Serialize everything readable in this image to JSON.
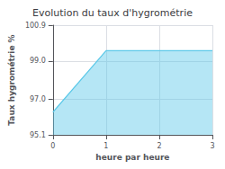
{
  "chart_data": {
    "type": "line",
    "title": "Evolution du taux d'hygrométrie",
    "xlabel": "heure par heure",
    "ylabel": "Taux hygrométrie %",
    "x": [
      0,
      1,
      3
    ],
    "values": [
      96.3,
      99.55,
      99.55
    ],
    "color": "#5bc8e8",
    "xlim": [
      0,
      3
    ],
    "xticks": [
      0,
      1,
      2,
      3
    ],
    "ylim": [
      95.1,
      100.9
    ],
    "yticks": [
      95.1,
      {
        "value": 97.0,
        "label": "97.0"
      },
      {
        "value": 99.0,
        "label": "99.0"
      },
      100.9
    ],
    "grid": true
  }
}
